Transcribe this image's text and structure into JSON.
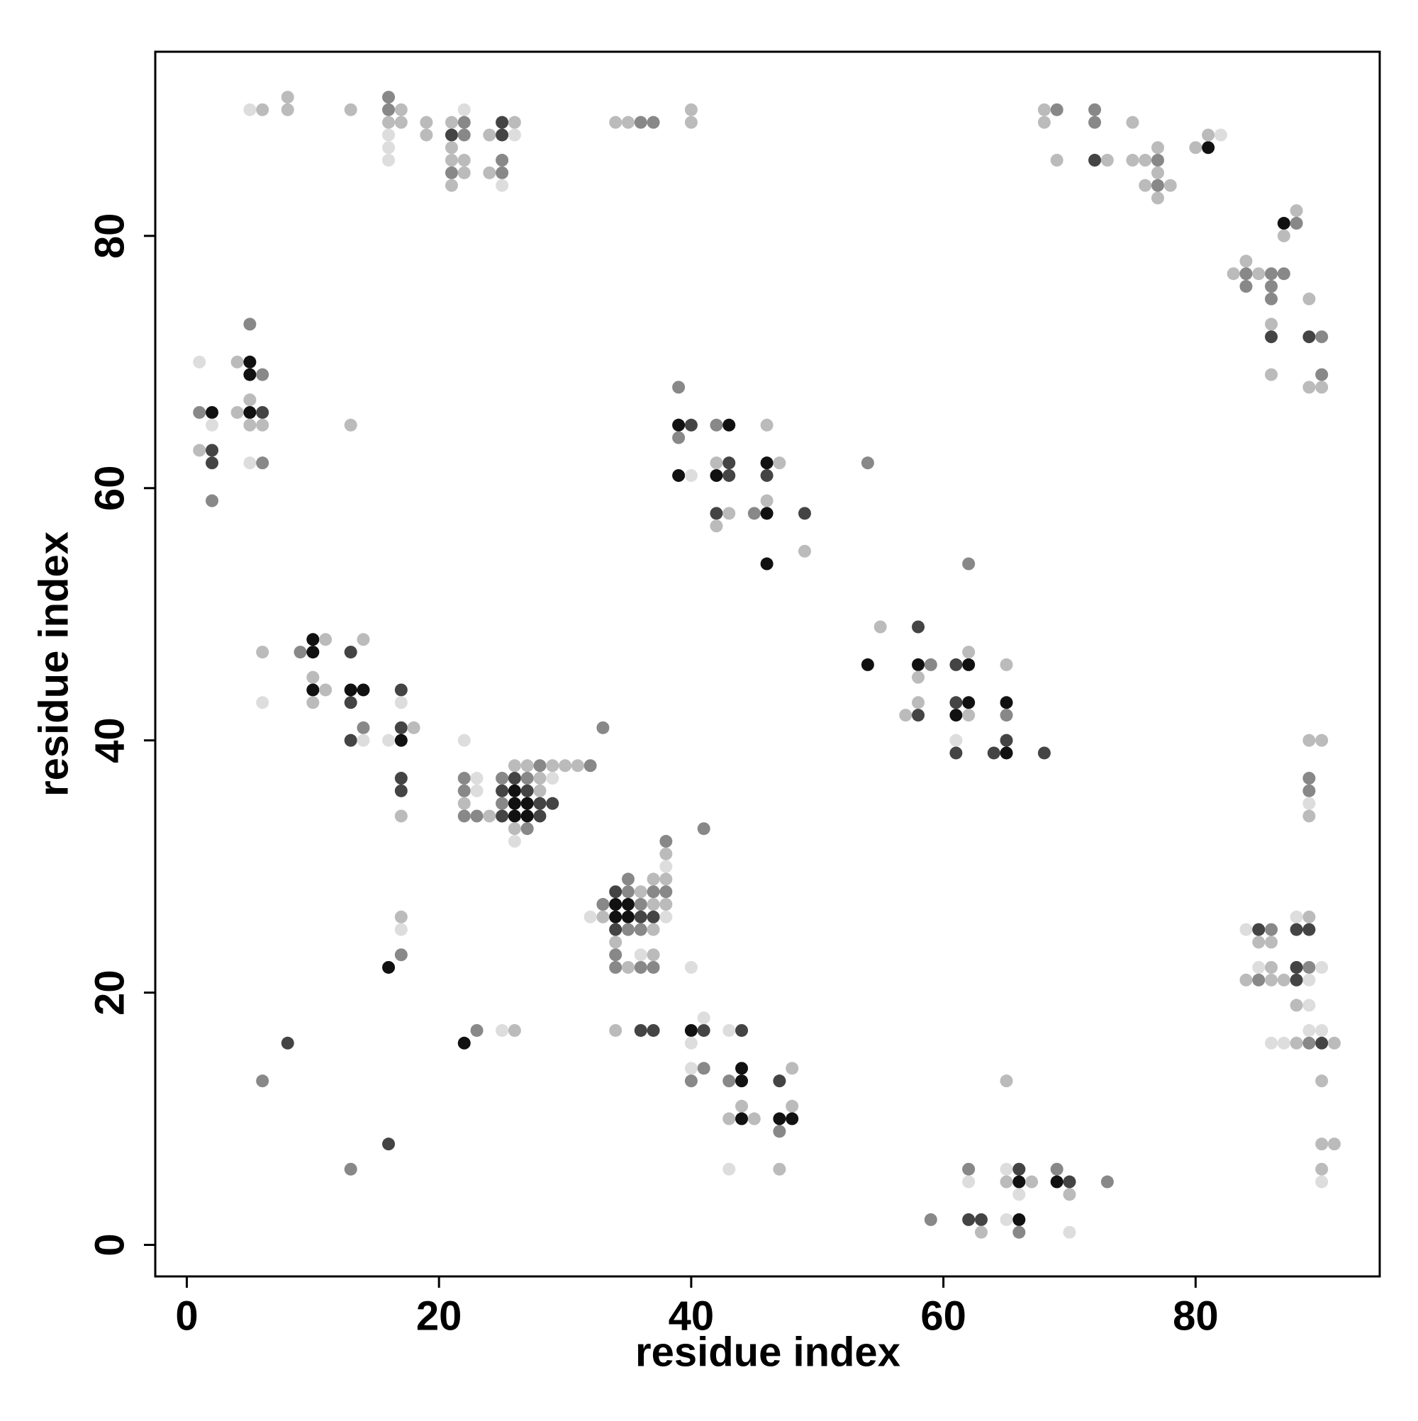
{
  "chart_data": {
    "type": "scatter",
    "x_label": "residue index",
    "y_label": "residue index",
    "xlim": [
      -2.5,
      94.6
    ],
    "ylim": [
      -2.5,
      94.6
    ],
    "xticks": [
      0,
      20,
      40,
      60,
      80
    ],
    "yticks": [
      0,
      20,
      40,
      60,
      80
    ],
    "grid": false,
    "x": [
      5,
      6,
      8,
      8,
      13,
      16,
      16,
      17,
      16,
      17,
      16,
      16,
      16,
      19,
      19,
      21,
      22,
      21,
      22,
      22,
      21,
      22,
      21,
      21,
      22,
      21,
      24,
      25,
      26,
      25,
      26,
      25,
      24,
      25,
      25,
      34,
      35,
      36,
      37,
      40,
      40,
      68,
      69,
      68,
      69,
      72,
      72,
      72,
      73,
      75,
      75,
      76,
      77,
      77,
      76,
      77,
      77,
      78,
      77,
      80,
      81,
      81,
      82,
      87,
      88,
      88,
      87,
      83,
      84,
      84,
      84,
      85,
      86,
      87,
      86,
      86,
      86,
      86,
      86,
      89,
      89,
      90,
      90,
      89,
      90,
      1,
      1,
      2,
      2,
      1,
      2,
      2,
      2,
      4,
      5,
      5,
      6,
      5,
      5,
      4,
      5,
      6,
      5,
      6,
      5,
      6,
      13,
      39,
      39,
      40,
      39,
      39,
      40,
      42,
      43,
      42,
      43,
      42,
      43,
      42,
      43,
      42,
      46,
      46,
      47,
      46,
      46,
      45,
      46,
      49,
      49,
      46,
      54,
      54,
      55,
      58,
      58,
      59,
      58,
      58,
      57,
      58,
      62,
      61,
      62,
      62,
      61,
      62,
      61,
      62,
      61,
      61,
      65,
      65,
      65,
      65,
      64,
      65,
      68,
      6,
      6,
      9,
      10,
      11,
      10,
      10,
      10,
      10,
      11,
      13,
      14,
      13,
      14,
      13,
      14,
      13,
      14,
      16,
      17,
      17,
      17,
      17,
      18,
      17,
      17,
      17,
      22,
      33,
      22,
      23,
      22,
      23,
      22,
      22,
      23,
      24,
      25,
      26,
      27,
      28,
      29,
      30,
      31,
      32,
      26,
      27,
      28,
      29,
      25,
      26,
      27,
      28,
      25,
      26,
      27,
      28,
      29,
      25,
      26,
      27,
      28,
      26,
      27,
      26,
      38,
      38,
      38,
      37,
      38,
      35,
      34,
      35,
      36,
      37,
      38,
      33,
      34,
      35,
      36,
      37,
      38,
      32,
      33,
      34,
      35,
      36,
      37,
      38,
      34,
      35,
      36,
      37,
      34,
      34,
      36,
      37,
      34,
      35,
      36,
      37,
      40,
      41,
      17,
      17,
      17,
      16,
      8,
      6,
      16,
      13,
      22,
      23,
      25,
      26,
      34,
      36,
      37,
      40,
      41,
      41,
      40,
      43,
      44,
      40,
      41,
      40,
      43,
      44,
      44,
      44,
      43,
      44,
      45,
      47,
      48,
      48,
      47,
      48,
      47,
      43,
      47,
      59,
      62,
      62,
      62,
      63,
      63,
      65,
      66,
      65,
      66,
      67,
      66,
      65,
      66,
      66,
      65,
      69,
      69,
      70,
      70,
      70,
      73,
      89,
      90,
      89,
      89,
      89,
      89,
      84,
      85,
      86,
      85,
      86,
      88,
      89,
      88,
      89,
      85,
      86,
      88,
      89,
      90,
      84,
      85,
      86,
      87,
      88,
      89,
      88,
      89,
      86,
      87,
      88,
      89,
      89,
      90,
      90,
      91,
      90,
      90,
      91,
      90,
      90
    ],
    "y": [
      90,
      90,
      91,
      90,
      90,
      91,
      90,
      90,
      89,
      89,
      88,
      87,
      86,
      89,
      88,
      89,
      90,
      88,
      89,
      88,
      87,
      86,
      86,
      85,
      85,
      84,
      88,
      89,
      89,
      88,
      88,
      86,
      85,
      85,
      84,
      89,
      89,
      89,
      89,
      90,
      89,
      90,
      90,
      89,
      86,
      90,
      89,
      86,
      86,
      89,
      86,
      86,
      87,
      86,
      84,
      85,
      84,
      84,
      83,
      87,
      87,
      88,
      88,
      81,
      82,
      81,
      80,
      77,
      78,
      77,
      76,
      77,
      77,
      77,
      76,
      75,
      73,
      72,
      69,
      75,
      72,
      72,
      69,
      68,
      68,
      70,
      66,
      66,
      65,
      63,
      63,
      62,
      59,
      70,
      70,
      69,
      69,
      73,
      67,
      66,
      66,
      66,
      65,
      65,
      62,
      62,
      65,
      68,
      65,
      65,
      64,
      61,
      61,
      65,
      65,
      62,
      62,
      61,
      61,
      58,
      58,
      57,
      65,
      62,
      62,
      61,
      59,
      58,
      58,
      58,
      55,
      54,
      62,
      46,
      49,
      49,
      46,
      46,
      45,
      43,
      42,
      42,
      54,
      46,
      46,
      47,
      43,
      43,
      42,
      42,
      40,
      39,
      46,
      43,
      42,
      40,
      39,
      39,
      39,
      47,
      43,
      47,
      48,
      48,
      47,
      45,
      44,
      43,
      44,
      47,
      48,
      44,
      44,
      43,
      41,
      40,
      40,
      40,
      44,
      43,
      41,
      40,
      41,
      37,
      36,
      34,
      40,
      41,
      37,
      37,
      36,
      36,
      35,
      34,
      34,
      34,
      37,
      38,
      38,
      38,
      38,
      38,
      38,
      38,
      37,
      37,
      37,
      37,
      36,
      36,
      36,
      36,
      35,
      35,
      35,
      35,
      35,
      34,
      34,
      34,
      34,
      33,
      33,
      32,
      32,
      31,
      30,
      29,
      29,
      29,
      28,
      28,
      28,
      28,
      28,
      27,
      27,
      27,
      27,
      27,
      27,
      26,
      26,
      26,
      26,
      26,
      26,
      26,
      25,
      25,
      25,
      25,
      24,
      23,
      23,
      23,
      22,
      22,
      22,
      22,
      22,
      33,
      26,
      25,
      23,
      22,
      16,
      13,
      8,
      6,
      16,
      17,
      17,
      17,
      17,
      17,
      17,
      17,
      17,
      18,
      16,
      17,
      17,
      14,
      14,
      13,
      13,
      14,
      13,
      11,
      10,
      10,
      10,
      13,
      14,
      11,
      10,
      10,
      9,
      6,
      6,
      2,
      6,
      5,
      2,
      2,
      1,
      6,
      6,
      5,
      5,
      5,
      4,
      2,
      2,
      1,
      13,
      6,
      5,
      5,
      4,
      1,
      5,
      40,
      40,
      37,
      36,
      35,
      34,
      25,
      25,
      25,
      24,
      24,
      26,
      26,
      25,
      25,
      22,
      22,
      22,
      22,
      22,
      21,
      21,
      21,
      21,
      21,
      21,
      19,
      19,
      16,
      16,
      16,
      17,
      16,
      17,
      16,
      16,
      13,
      8,
      8,
      6,
      5
    ],
    "colors": [
      "#ddd",
      "#bbb",
      "#bbb",
      "#bbb",
      "#bbb",
      "#888",
      "#888",
      "#bbb",
      "#bbb",
      "#bbb",
      "#ddd",
      "#ddd",
      "#ddd",
      "#bbb",
      "#bbb",
      "#bbb",
      "#ddd",
      "#444",
      "#888",
      "#888",
      "#bbb",
      "#bbb",
      "#bbb",
      "#888",
      "#bbb",
      "#bbb",
      "#bbb",
      "#444",
      "#bbb",
      "#444",
      "#ddd",
      "#888",
      "#bbb",
      "#888",
      "#ddd",
      "#bbb",
      "#bbb",
      "#888",
      "#888",
      "#bbb",
      "#bbb",
      "#bbb",
      "#888",
      "#bbb",
      "#bbb",
      "#888",
      "#888",
      "#444",
      "#bbb",
      "#bbb",
      "#bbb",
      "#bbb",
      "#bbb",
      "#888",
      "#bbb",
      "#bbb",
      "#888",
      "#bbb",
      "#bbb",
      "#bbb",
      "#111",
      "#bbb",
      "#ddd",
      "#111",
      "#bbb",
      "#888",
      "#bbb",
      "#bbb",
      "#bbb",
      "#888",
      "#888",
      "#bbb",
      "#888",
      "#888",
      "#888",
      "#888",
      "#bbb",
      "#444",
      "#bbb",
      "#bbb",
      "#444",
      "#888",
      "#888",
      "#bbb",
      "#bbb",
      "#ddd",
      "#888",
      "#111",
      "#ddd",
      "#bbb",
      "#444",
      "#444",
      "#888",
      "#bbb",
      "#111",
      "#111",
      "#888",
      "#888",
      "#bbb",
      "#bbb",
      "#111",
      "#444",
      "#bbb",
      "#bbb",
      "#ddd",
      "#888",
      "#bbb",
      "#888",
      "#111",
      "#444",
      "#888",
      "#111",
      "#ddd",
      "#888",
      "#111",
      "#bbb",
      "#444",
      "#111",
      "#444",
      "#444",
      "#bbb",
      "#bbb",
      "#bbb",
      "#111",
      "#bbb",
      "#444",
      "#bbb",
      "#888",
      "#111",
      "#444",
      "#bbb",
      "#111",
      "#888",
      "#111",
      "#bbb",
      "#444",
      "#111",
      "#888",
      "#bbb",
      "#bbb",
      "#bbb",
      "#444",
      "#888",
      "#444",
      "#111",
      "#bbb",
      "#444",
      "#111",
      "#111",
      "#bbb",
      "#ddd",
      "#444",
      "#bbb",
      "#111",
      "#888",
      "#444",
      "#444",
      "#111",
      "#444",
      "#bbb",
      "#ddd",
      "#888",
      "#111",
      "#bbb",
      "#111",
      "#bbb",
      "#111",
      "#bbb",
      "#bbb",
      "#444",
      "#bbb",
      "#111",
      "#111",
      "#444",
      "#888",
      "#444",
      "#ddd",
      "#ddd",
      "#444",
      "#ddd",
      "#444",
      "#111",
      "#bbb",
      "#444",
      "#444",
      "#bbb",
      "#ddd",
      "#888",
      "#888",
      "#ddd",
      "#888",
      "#ddd",
      "#bbb",
      "#888",
      "#888",
      "#bbb",
      "#888",
      "#bbb",
      "#bbb",
      "#888",
      "#bbb",
      "#bbb",
      "#bbb",
      "#888",
      "#444",
      "#888",
      "#bbb",
      "#ddd",
      "#444",
      "#111",
      "#444",
      "#bbb",
      "#888",
      "#111",
      "#111",
      "#444",
      "#444",
      "#444",
      "#111",
      "#111",
      "#444",
      "#bbb",
      "#888",
      "#ddd",
      "#888",
      "#bbb",
      "#ddd",
      "#bbb",
      "#bbb",
      "#888",
      "#444",
      "#888",
      "#bbb",
      "#888",
      "#888",
      "#888",
      "#111",
      "#111",
      "#888",
      "#bbb",
      "#bbb",
      "#ddd",
      "#bbb",
      "#111",
      "#111",
      "#444",
      "#444",
      "#ddd",
      "#444",
      "#888",
      "#888",
      "#bbb",
      "#bbb",
      "#888",
      "#ddd",
      "#bbb",
      "#888",
      "#bbb",
      "#888",
      "#888",
      "#ddd",
      "#888",
      "#bbb",
      "#ddd",
      "#888",
      "#111",
      "#444",
      "#888",
      "#444",
      "#888",
      "#111",
      "#888",
      "#ddd",
      "#bbb",
      "#bbb",
      "#444",
      "#444",
      "#111",
      "#444",
      "#ddd",
      "#ddd",
      "#ddd",
      "#444",
      "#ddd",
      "#888",
      "#888",
      "#888",
      "#111",
      "#111",
      "#bbb",
      "#bbb",
      "#111",
      "#bbb",
      "#444",
      "#bbb",
      "#bbb",
      "#111",
      "#111",
      "#888",
      "#ddd",
      "#bbb",
      "#888",
      "#888",
      "#ddd",
      "#444",
      "#444",
      "#bbb",
      "#ddd",
      "#444",
      "#bbb",
      "#111",
      "#bbb",
      "#ddd",
      "#ddd",
      "#111",
      "#888",
      "#bbb",
      "#888",
      "#111",
      "#444",
      "#bbb",
      "#ddd",
      "#888",
      "#bbb",
      "#bbb",
      "#888",
      "#888",
      "#ddd",
      "#bbb",
      "#ddd",
      "#444",
      "#888",
      "#bbb",
      "#bbb",
      "#ddd",
      "#bbb",
      "#444",
      "#444",
      "#ddd",
      "#bbb",
      "#444",
      "#888",
      "#ddd",
      "#bbb",
      "#888",
      "#bbb",
      "#bbb",
      "#444",
      "#ddd",
      "#bbb",
      "#ddd",
      "#ddd",
      "#ddd",
      "#bbb",
      "#ddd",
      "#888",
      "#ddd",
      "#444",
      "#bbb",
      "#bbb",
      "#bbb",
      "#bbb",
      "#bbb",
      "#ddd"
    ]
  }
}
